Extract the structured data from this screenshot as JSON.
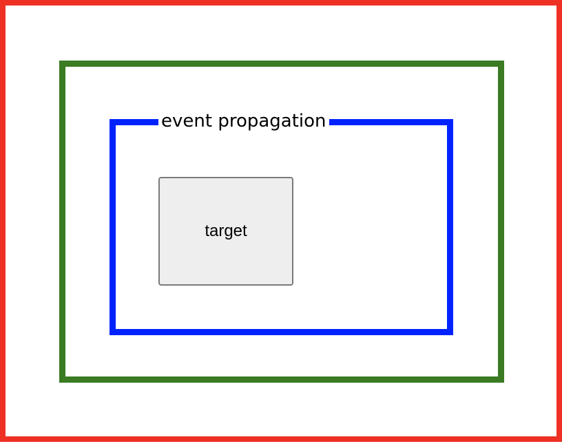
{
  "fieldset": {
    "legend": "event propagation"
  },
  "target_button": {
    "label": "target"
  },
  "colors": {
    "outer_border": "#ee3124",
    "middle_border": "#3a7b23",
    "fieldset_border": "#0022ff",
    "target_background": "#eeeeee",
    "target_border": "#7a7a7a"
  }
}
